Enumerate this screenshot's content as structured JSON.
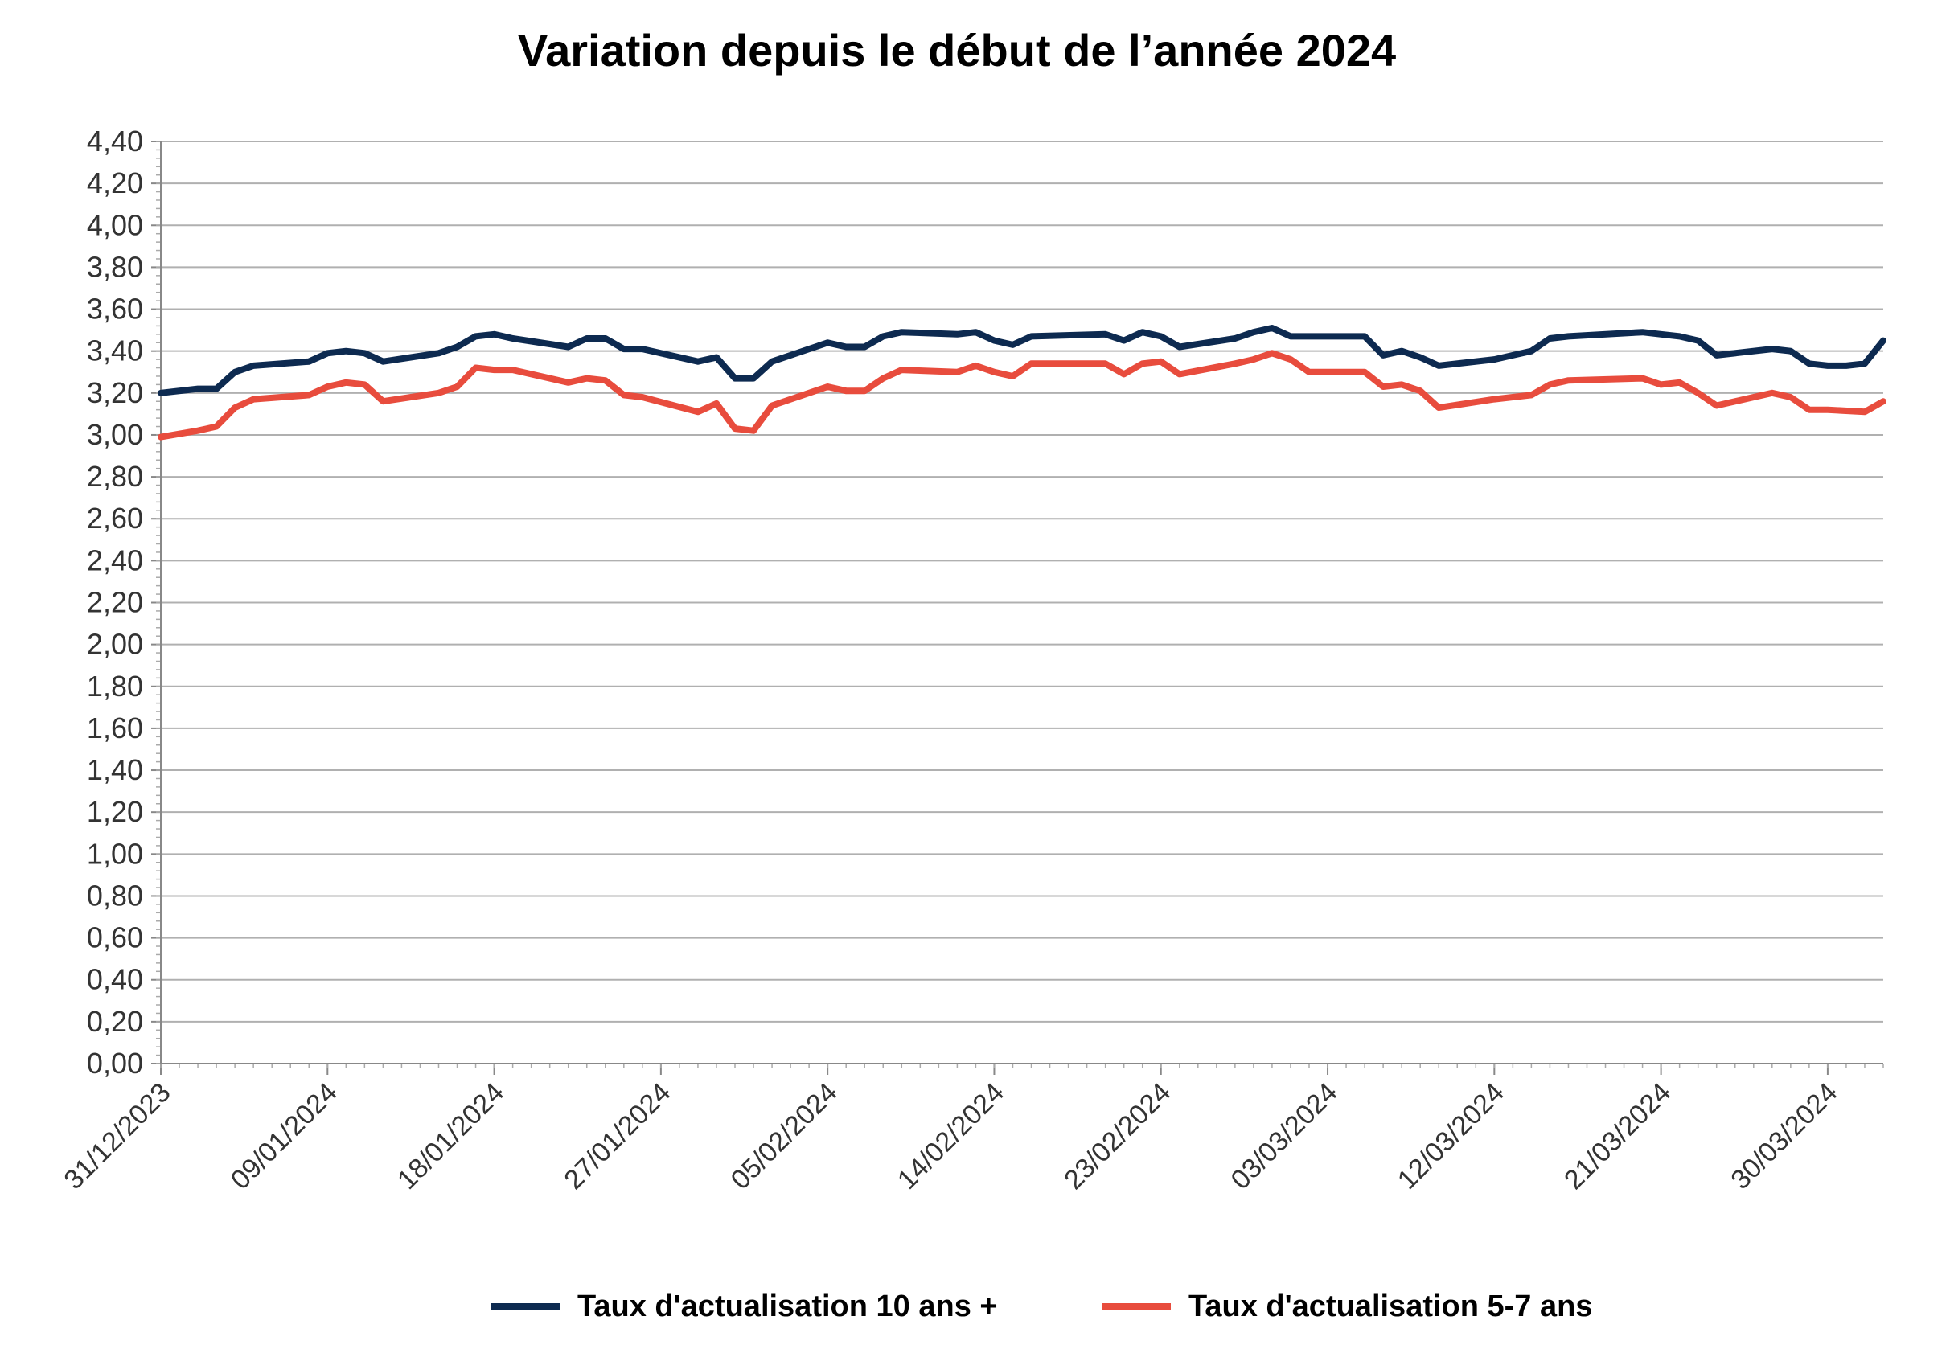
{
  "chart_data": {
    "type": "line",
    "title": "Variation depuis le début de l’année 2024",
    "xlabel": "",
    "ylabel": "",
    "ylim": [
      0,
      4.4
    ],
    "y_ticks": [
      "0,00",
      "0,20",
      "0,40",
      "0,60",
      "0,80",
      "1,00",
      "1,20",
      "1,40",
      "1,60",
      "1,80",
      "2,00",
      "2,20",
      "2,40",
      "2,60",
      "2,80",
      "3,00",
      "3,20",
      "3,40",
      "3,60",
      "3,80",
      "4,00",
      "4,20",
      "4,40"
    ],
    "x_range": [
      "2023-12-31",
      "2024-04-02"
    ],
    "x_tick_labels": [
      "31/12/2023",
      "09/01/2024",
      "18/01/2024",
      "27/01/2024",
      "05/02/2024",
      "14/02/2024",
      "23/02/2024",
      "03/03/2024",
      "12/03/2024",
      "21/03/2024",
      "30/03/2024"
    ],
    "grid": "horizontal",
    "legend_position": "bottom",
    "series": [
      {
        "name": "Taux d'actualisation 10 ans +",
        "color": "#0d2a50",
        "points": [
          [
            "2023-12-31",
            3.2
          ],
          [
            "2024-01-02",
            3.22
          ],
          [
            "2024-01-03",
            3.22
          ],
          [
            "2024-01-04",
            3.3
          ],
          [
            "2024-01-05",
            3.33
          ],
          [
            "2024-01-08",
            3.35
          ],
          [
            "2024-01-09",
            3.39
          ],
          [
            "2024-01-10",
            3.4
          ],
          [
            "2024-01-11",
            3.39
          ],
          [
            "2024-01-12",
            3.35
          ],
          [
            "2024-01-15",
            3.39
          ],
          [
            "2024-01-16",
            3.42
          ],
          [
            "2024-01-17",
            3.47
          ],
          [
            "2024-01-18",
            3.48
          ],
          [
            "2024-01-19",
            3.46
          ],
          [
            "2024-01-22",
            3.42
          ],
          [
            "2024-01-23",
            3.46
          ],
          [
            "2024-01-24",
            3.46
          ],
          [
            "2024-01-25",
            3.41
          ],
          [
            "2024-01-26",
            3.41
          ],
          [
            "2024-01-29",
            3.35
          ],
          [
            "2024-01-30",
            3.37
          ],
          [
            "2024-01-31",
            3.27
          ],
          [
            "2024-02-01",
            3.27
          ],
          [
            "2024-02-02",
            3.35
          ],
          [
            "2024-02-05",
            3.44
          ],
          [
            "2024-02-06",
            3.42
          ],
          [
            "2024-02-07",
            3.42
          ],
          [
            "2024-02-08",
            3.47
          ],
          [
            "2024-02-09",
            3.49
          ],
          [
            "2024-02-12",
            3.48
          ],
          [
            "2024-02-13",
            3.49
          ],
          [
            "2024-02-14",
            3.45
          ],
          [
            "2024-02-15",
            3.43
          ],
          [
            "2024-02-16",
            3.47
          ],
          [
            "2024-02-20",
            3.48
          ],
          [
            "2024-02-21",
            3.45
          ],
          [
            "2024-02-22",
            3.49
          ],
          [
            "2024-02-23",
            3.47
          ],
          [
            "2024-02-24",
            3.42
          ],
          [
            "2024-02-27",
            3.46
          ],
          [
            "2024-02-28",
            3.49
          ],
          [
            "2024-02-29",
            3.51
          ],
          [
            "2024-03-01",
            3.47
          ],
          [
            "2024-03-05",
            3.47
          ],
          [
            "2024-03-06",
            3.38
          ],
          [
            "2024-03-07",
            3.4
          ],
          [
            "2024-03-08",
            3.37
          ],
          [
            "2024-03-09",
            3.33
          ],
          [
            "2024-03-12",
            3.36
          ],
          [
            "2024-03-13",
            3.38
          ],
          [
            "2024-03-14",
            3.4
          ],
          [
            "2024-03-15",
            3.46
          ],
          [
            "2024-03-16",
            3.47
          ],
          [
            "2024-03-20",
            3.49
          ],
          [
            "2024-03-21",
            3.48
          ],
          [
            "2024-03-22",
            3.47
          ],
          [
            "2024-03-23",
            3.45
          ],
          [
            "2024-03-24",
            3.38
          ],
          [
            "2024-03-27",
            3.41
          ],
          [
            "2024-03-28",
            3.4
          ],
          [
            "2024-03-29",
            3.34
          ],
          [
            "2024-03-30",
            3.33
          ],
          [
            "2024-03-31",
            3.33
          ],
          [
            "2024-04-01",
            3.34
          ],
          [
            "2024-04-02",
            3.45
          ]
        ]
      },
      {
        "name": "Taux d'actualisation 5-7 ans",
        "color": "#e84c3d",
        "points": [
          [
            "2023-12-31",
            2.99
          ],
          [
            "2024-01-02",
            3.02
          ],
          [
            "2024-01-03",
            3.04
          ],
          [
            "2024-01-04",
            3.13
          ],
          [
            "2024-01-05",
            3.17
          ],
          [
            "2024-01-08",
            3.19
          ],
          [
            "2024-01-09",
            3.23
          ],
          [
            "2024-01-10",
            3.25
          ],
          [
            "2024-01-11",
            3.24
          ],
          [
            "2024-01-12",
            3.16
          ],
          [
            "2024-01-15",
            3.2
          ],
          [
            "2024-01-16",
            3.23
          ],
          [
            "2024-01-17",
            3.32
          ],
          [
            "2024-01-18",
            3.31
          ],
          [
            "2024-01-19",
            3.31
          ],
          [
            "2024-01-22",
            3.25
          ],
          [
            "2024-01-23",
            3.27
          ],
          [
            "2024-01-24",
            3.26
          ],
          [
            "2024-01-25",
            3.19
          ],
          [
            "2024-01-26",
            3.18
          ],
          [
            "2024-01-29",
            3.11
          ],
          [
            "2024-01-30",
            3.15
          ],
          [
            "2024-01-31",
            3.03
          ],
          [
            "2024-02-01",
            3.02
          ],
          [
            "2024-02-02",
            3.14
          ],
          [
            "2024-02-05",
            3.23
          ],
          [
            "2024-02-06",
            3.21
          ],
          [
            "2024-02-07",
            3.21
          ],
          [
            "2024-02-08",
            3.27
          ],
          [
            "2024-02-09",
            3.31
          ],
          [
            "2024-02-12",
            3.3
          ],
          [
            "2024-02-13",
            3.33
          ],
          [
            "2024-02-14",
            3.3
          ],
          [
            "2024-02-15",
            3.28
          ],
          [
            "2024-02-16",
            3.34
          ],
          [
            "2024-02-20",
            3.34
          ],
          [
            "2024-02-21",
            3.29
          ],
          [
            "2024-02-22",
            3.34
          ],
          [
            "2024-02-23",
            3.35
          ],
          [
            "2024-02-24",
            3.29
          ],
          [
            "2024-02-27",
            3.34
          ],
          [
            "2024-02-28",
            3.36
          ],
          [
            "2024-02-29",
            3.39
          ],
          [
            "2024-03-01",
            3.36
          ],
          [
            "2024-03-02",
            3.3
          ],
          [
            "2024-03-05",
            3.3
          ],
          [
            "2024-03-06",
            3.23
          ],
          [
            "2024-03-07",
            3.24
          ],
          [
            "2024-03-08",
            3.21
          ],
          [
            "2024-03-09",
            3.13
          ],
          [
            "2024-03-12",
            3.17
          ],
          [
            "2024-03-13",
            3.18
          ],
          [
            "2024-03-14",
            3.19
          ],
          [
            "2024-03-15",
            3.24
          ],
          [
            "2024-03-16",
            3.26
          ],
          [
            "2024-03-20",
            3.27
          ],
          [
            "2024-03-21",
            3.24
          ],
          [
            "2024-03-22",
            3.25
          ],
          [
            "2024-03-23",
            3.2
          ],
          [
            "2024-03-24",
            3.14
          ],
          [
            "2024-03-27",
            3.2
          ],
          [
            "2024-03-28",
            3.18
          ],
          [
            "2024-03-29",
            3.12
          ],
          [
            "2024-03-30",
            3.12
          ],
          [
            "2024-04-01",
            3.11
          ],
          [
            "2024-04-02",
            3.16
          ]
        ]
      }
    ]
  }
}
